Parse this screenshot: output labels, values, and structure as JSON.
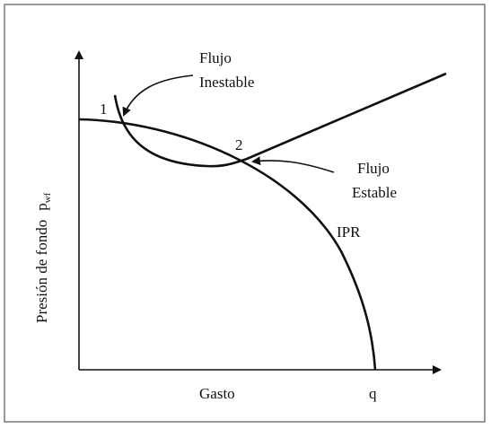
{
  "labels": {
    "unstable_line1": "Flujo",
    "unstable_line2": "Inestable",
    "point1": "1",
    "point2": "2",
    "stable_line1": "Flujo",
    "stable_line2": "Estable",
    "ipr": "IPR",
    "y_axis": "Presión de fondo",
    "y_symbol": "p",
    "y_subscript": "wf",
    "x_axis": "Gasto",
    "x_symbol": "q"
  }
}
